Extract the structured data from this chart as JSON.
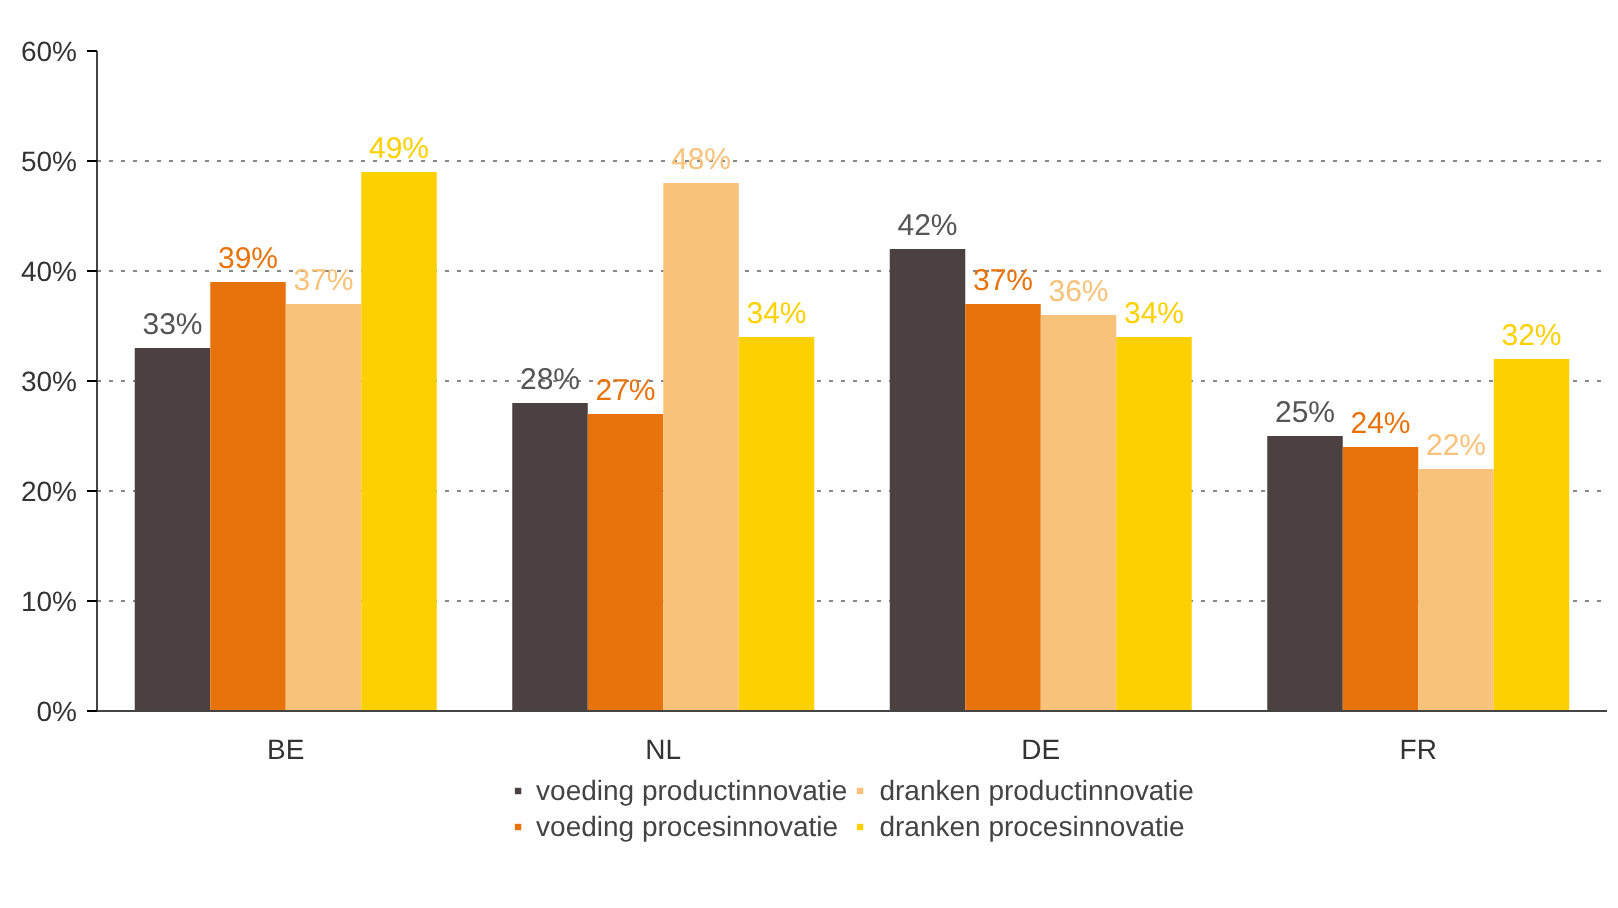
{
  "chart_data": {
    "type": "bar",
    "categories": [
      "BE",
      "NL",
      "DE",
      "FR"
    ],
    "series": [
      {
        "name": "voeding productinnovatie",
        "color": "#4a4140",
        "values": [
          33,
          28,
          42,
          25
        ],
        "value_labels": [
          "33%",
          "28%",
          "42%",
          "25%"
        ]
      },
      {
        "name": "voeding procesinnovatie",
        "color": "#e8730c",
        "values": [
          39,
          27,
          37,
          24
        ],
        "value_labels": [
          "39%",
          "27%",
          "37%",
          "24%"
        ]
      },
      {
        "name": "dranken productinnovatie",
        "color": "#f9c27a",
        "values": [
          37,
          48,
          36,
          22
        ],
        "value_labels": [
          "37%",
          "48%",
          "36%",
          "22%"
        ]
      },
      {
        "name": "dranken procesinnovatie",
        "color": "#fdd000",
        "values": [
          49,
          34,
          34,
          32
        ],
        "value_labels": [
          "49%",
          "34%",
          "34%",
          "32%"
        ]
      }
    ],
    "ylim": [
      0,
      60
    ],
    "yticks": [
      {
        "value": 0,
        "label": "0%"
      },
      {
        "value": 10,
        "label": "10%"
      },
      {
        "value": 20,
        "label": "20%"
      },
      {
        "value": 30,
        "label": "30%"
      },
      {
        "value": 40,
        "label": "40%"
      },
      {
        "value": 50,
        "label": "50%"
      },
      {
        "value": 60,
        "label": "60%"
      }
    ],
    "grid": "y",
    "legend": "bottom"
  }
}
